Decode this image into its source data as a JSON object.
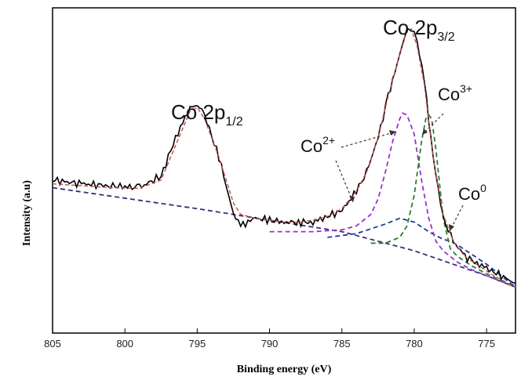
{
  "chart_data": {
    "type": "line",
    "title": "",
    "xlabel": "Binding energy (eV)",
    "ylabel": "Intensity (a.u)",
    "xlim": [
      805,
      773
    ],
    "x_reversed": true,
    "xticks": [
      805,
      800,
      795,
      790,
      785,
      780,
      775
    ],
    "yticks_shown": false,
    "grid": false,
    "colors": {
      "raw": "#000000",
      "fit": "#c0504d",
      "co2": "#9933cc",
      "co3": "#2e7d32",
      "co0": "#1f3a93",
      "background": "#3b2f7a"
    },
    "series": [
      {
        "key": "raw",
        "x": [
          805,
          803,
          801,
          799,
          797.5,
          796.5,
          795.5,
          795,
          794.5,
          793.5,
          792.5,
          792,
          791,
          790,
          789,
          788,
          787,
          786,
          785,
          784,
          783.3,
          782.5,
          781.8,
          781.2,
          780.8,
          780.5,
          780.2,
          779.8,
          779.3,
          778.7,
          778,
          777.3,
          776.5,
          775.5,
          774.5,
          773
        ],
        "y": [
          60,
          59,
          58.5,
          58,
          61,
          71,
          79,
          80,
          77,
          66,
          51,
          48,
          50,
          49.5,
          49,
          49,
          49,
          50.5,
          52,
          57,
          62,
          71,
          82,
          90,
          96,
          99.5,
          100,
          96,
          86,
          66,
          50,
          44,
          40,
          38,
          36,
          33
        ]
      },
      {
        "key": "fit",
        "x": [
          805,
          803,
          801,
          799,
          797.5,
          796.5,
          795.5,
          795,
          794.5,
          793.5,
          792.5,
          792,
          791,
          790,
          789,
          788,
          787,
          786,
          785,
          784,
          783.3,
          782.5,
          781.8,
          781.2,
          780.8,
          780.5,
          780.2,
          779.8,
          779.3,
          778.7,
          778,
          777.3,
          776.5,
          775.5,
          774.5,
          773
        ],
        "y": [
          59,
          58.5,
          58,
          57.8,
          60,
          69,
          78,
          79,
          76,
          66,
          54,
          51,
          50,
          49.5,
          49,
          49,
          49.5,
          50.5,
          52.5,
          57,
          62,
          71,
          82,
          90,
          96,
          99,
          99.5,
          95,
          85,
          66,
          51,
          44,
          40,
          37.5,
          35,
          32
        ]
      },
      {
        "key": "co2",
        "x": [
          790,
          787,
          785,
          784,
          783,
          782.5,
          782,
          781.5,
          781,
          780.8,
          780.5,
          780,
          779.5,
          779,
          778.5,
          778,
          777.5,
          777,
          776,
          775,
          774,
          773
        ],
        "y": [
          46.5,
          46.5,
          47,
          48,
          51,
          55,
          62,
          70,
          76,
          77.5,
          77,
          72,
          60,
          50,
          44,
          41.5,
          40,
          38.5,
          36.5,
          35,
          33.5,
          32
        ]
      },
      {
        "key": "co3",
        "x": [
          783,
          782,
          781,
          780.5,
          780,
          779.5,
          779.2,
          779,
          778.8,
          778.5,
          778,
          777.5,
          777,
          776,
          775,
          773
        ],
        "y": [
          43.5,
          43.5,
          45,
          48,
          56,
          70,
          76,
          77,
          76,
          68,
          50,
          42,
          40,
          37.5,
          35.5,
          32
        ]
      },
      {
        "key": "co0",
        "x": [
          786,
          784,
          782,
          781,
          780,
          779,
          778,
          777.5,
          777,
          776,
          775,
          774,
          773
        ],
        "y": [
          45,
          46,
          48.5,
          50,
          49,
          46.5,
          44.5,
          44,
          43,
          40.5,
          38,
          35,
          32
        ]
      },
      {
        "key": "background",
        "x": [
          805,
          795,
          790,
          785,
          780,
          775,
          773
        ],
        "y": [
          58,
          52.5,
          49.5,
          46.5,
          41.5,
          35,
          32
        ]
      }
    ],
    "annotations": {
      "peak_major": {
        "text": "Co 2p",
        "sub": "3/2",
        "x": 780.2
      },
      "peak_minor": {
        "text": "Co 2p",
        "sub": "1/2",
        "x": 795
      },
      "species": [
        {
          "text": "Co",
          "sup": "2+"
        },
        {
          "text": "Co",
          "sup": "3+"
        },
        {
          "text": "Co",
          "sup": "0"
        }
      ]
    }
  }
}
